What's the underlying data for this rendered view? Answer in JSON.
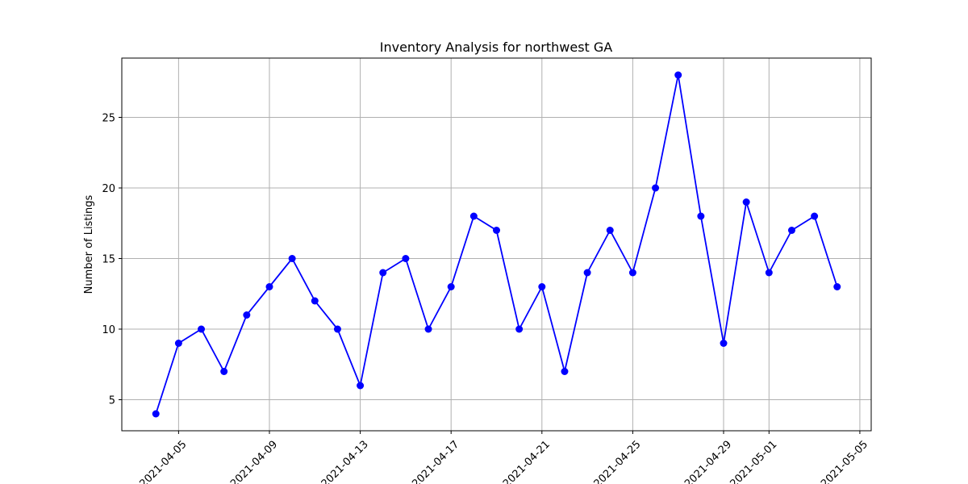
{
  "chart_data": {
    "type": "line",
    "title": "Inventory Analysis for northwest GA",
    "xlabel": "",
    "ylabel": "Number of Listings",
    "x": [
      "2021-04-04",
      "2021-04-05",
      "2021-04-06",
      "2021-04-07",
      "2021-04-08",
      "2021-04-09",
      "2021-04-10",
      "2021-04-11",
      "2021-04-12",
      "2021-04-13",
      "2021-04-14",
      "2021-04-15",
      "2021-04-16",
      "2021-04-17",
      "2021-04-18",
      "2021-04-19",
      "2021-04-20",
      "2021-04-21",
      "2021-04-22",
      "2021-04-23",
      "2021-04-24",
      "2021-04-25",
      "2021-04-26",
      "2021-04-27",
      "2021-04-28",
      "2021-04-29",
      "2021-04-30",
      "2021-05-01",
      "2021-05-02",
      "2021-05-03",
      "2021-05-04"
    ],
    "series": [
      {
        "color": "#0000ff",
        "values": [
          4,
          9,
          10,
          7,
          11,
          13,
          15,
          12,
          10,
          6,
          14,
          15,
          10,
          13,
          18,
          17,
          10,
          13,
          7,
          14,
          17,
          14,
          20,
          28,
          18,
          9,
          19,
          14,
          17,
          18,
          13
        ]
      }
    ],
    "xlim": [
      "2021-04-02 12:00",
      "2021-05-05 12:00"
    ],
    "ylim": [
      2.8,
      29.2
    ],
    "xticks": [
      "2021-04-05",
      "2021-04-09",
      "2021-04-13",
      "2021-04-17",
      "2021-04-21",
      "2021-04-25",
      "2021-04-29",
      "2021-05-01",
      "2021-05-05"
    ],
    "yticks": [
      5,
      10,
      15,
      20,
      25
    ],
    "grid": true,
    "marker": "circle"
  }
}
